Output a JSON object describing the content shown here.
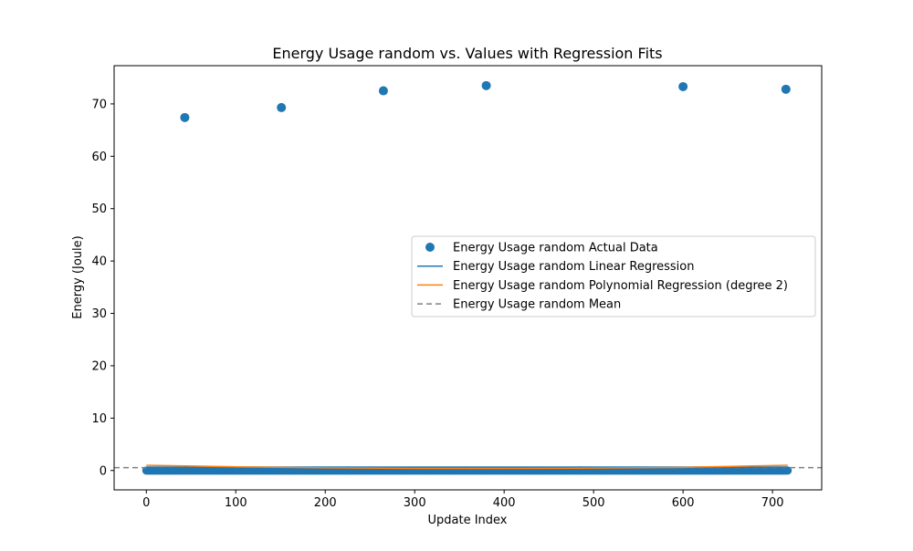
{
  "chart_data": {
    "type": "scatter",
    "title": "Energy Usage random vs. Values with Regression Fits",
    "xlabel": "Update Index",
    "ylabel": "Energy (Joule)",
    "xlim": [
      -36,
      755
    ],
    "ylim": [
      -3.7,
      77.3
    ],
    "xticks": [
      0,
      100,
      200,
      300,
      400,
      500,
      600,
      700
    ],
    "yticks": [
      0,
      10,
      20,
      30,
      40,
      50,
      60,
      70
    ],
    "grid": false,
    "legend_position": "center-right",
    "colors": {
      "scatter": "#1f77b4",
      "linear": "#1f77b4",
      "poly": "#ff7f0e",
      "mean": "#808080"
    },
    "series": [
      {
        "name": "Energy Usage random Actual Data",
        "kind": "scatter",
        "outliers": [
          {
            "x": 43,
            "y": 67.4
          },
          {
            "x": 151,
            "y": 69.3
          },
          {
            "x": 265,
            "y": 72.5
          },
          {
            "x": 380,
            "y": 73.5
          },
          {
            "x": 600,
            "y": 73.3
          },
          {
            "x": 715,
            "y": 72.8
          }
        ],
        "baseline": {
          "x_start": 0,
          "x_end": 717,
          "y": 0
        }
      },
      {
        "name": "Energy Usage random Linear Regression",
        "kind": "line",
        "points": [
          {
            "x": 0,
            "y": 0.5
          },
          {
            "x": 717,
            "y": 0.6
          }
        ]
      },
      {
        "name": "Energy Usage random Polynomial Regression (degree 2)",
        "kind": "line",
        "points": [
          {
            "x": 0,
            "y": 1.0
          },
          {
            "x": 100,
            "y": 0.7
          },
          {
            "x": 200,
            "y": 0.5
          },
          {
            "x": 300,
            "y": 0.4
          },
          {
            "x": 400,
            "y": 0.4
          },
          {
            "x": 500,
            "y": 0.45
          },
          {
            "x": 600,
            "y": 0.6
          },
          {
            "x": 717,
            "y": 1.0
          }
        ]
      },
      {
        "name": "Energy Usage random Mean",
        "kind": "hline",
        "y": 0.55
      }
    ]
  }
}
